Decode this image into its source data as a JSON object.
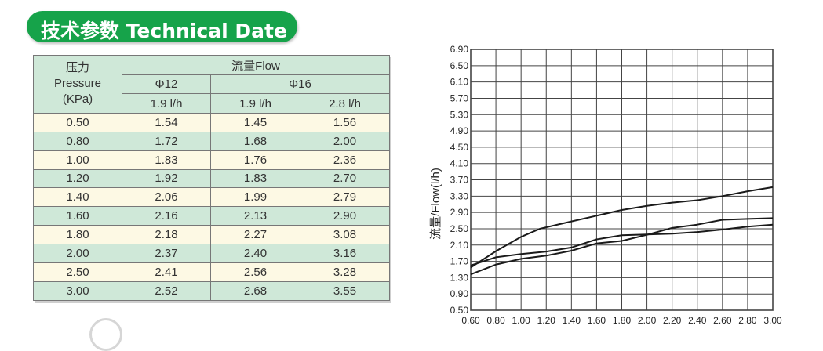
{
  "banner": {
    "title": "技术参数 Technical Date"
  },
  "table": {
    "pressure_cn": "压力",
    "pressure_en": "Pressure",
    "pressure_unit": "(KPa)",
    "flow_label": "流量Flow",
    "phi12": "Φ12",
    "phi16": "Φ16",
    "sub_headers": [
      "1.9 l/h",
      "1.9 l/h",
      "2.8 l/h"
    ],
    "rows": [
      [
        "0.50",
        "1.54",
        "1.45",
        "1.56"
      ],
      [
        "0.80",
        "1.72",
        "1.68",
        "2.00"
      ],
      [
        "1.00",
        "1.83",
        "1.76",
        "2.36"
      ],
      [
        "1.20",
        "1.92",
        "1.83",
        "2.70"
      ],
      [
        "1.40",
        "2.06",
        "1.99",
        "2.79"
      ],
      [
        "1.60",
        "2.16",
        "2.13",
        "2.90"
      ],
      [
        "1.80",
        "2.18",
        "2.27",
        "3.08"
      ],
      [
        "2.00",
        "2.37",
        "2.40",
        "3.16"
      ],
      [
        "2.50",
        "2.41",
        "2.56",
        "3.28"
      ],
      [
        "3.00",
        "2.52",
        "2.68",
        "3.55"
      ]
    ]
  },
  "chart_data": {
    "type": "line",
    "ylabel": "流量/Flow(l/h)",
    "xlabel": "",
    "xlim": [
      0.6,
      3.0
    ],
    "ylim": [
      0.5,
      6.9
    ],
    "grid": true,
    "xticks": [
      "0.60",
      "0.80",
      "1.00",
      "1.20",
      "1.40",
      "1.60",
      "1.80",
      "2.00",
      "2.20",
      "2.40",
      "2.60",
      "2.80",
      "3.00"
    ],
    "yticks": [
      "6.90",
      "6.50",
      "6.10",
      "5.70",
      "5.30",
      "4.90",
      "4.50",
      "4.10",
      "3.70",
      "3.30",
      "2.90",
      "2.50",
      "2.10",
      "1.70",
      "1.30",
      "0.90",
      "0.50"
    ],
    "series": [
      {
        "points": [
          [
            0.6,
            1.55
          ],
          [
            0.8,
            1.95
          ],
          [
            1.0,
            2.3
          ],
          [
            1.15,
            2.5
          ],
          [
            1.4,
            2.68
          ],
          [
            1.6,
            2.82
          ],
          [
            1.8,
            2.96
          ],
          [
            2.0,
            3.06
          ],
          [
            2.2,
            3.14
          ],
          [
            2.4,
            3.2
          ],
          [
            2.6,
            3.3
          ],
          [
            2.8,
            3.42
          ],
          [
            3.0,
            3.52
          ]
        ]
      },
      {
        "points": [
          [
            0.6,
            1.6
          ],
          [
            0.8,
            1.8
          ],
          [
            1.0,
            1.88
          ],
          [
            1.2,
            1.94
          ],
          [
            1.4,
            2.04
          ],
          [
            1.6,
            2.24
          ],
          [
            1.8,
            2.34
          ],
          [
            2.0,
            2.36
          ],
          [
            2.2,
            2.38
          ],
          [
            2.4,
            2.42
          ],
          [
            2.6,
            2.48
          ],
          [
            2.8,
            2.55
          ],
          [
            3.0,
            2.6
          ]
        ]
      },
      {
        "points": [
          [
            0.6,
            1.38
          ],
          [
            0.8,
            1.62
          ],
          [
            1.0,
            1.76
          ],
          [
            1.2,
            1.84
          ],
          [
            1.4,
            1.96
          ],
          [
            1.6,
            2.14
          ],
          [
            1.8,
            2.2
          ],
          [
            2.0,
            2.35
          ],
          [
            2.2,
            2.52
          ],
          [
            2.4,
            2.6
          ],
          [
            2.6,
            2.72
          ],
          [
            2.8,
            2.74
          ],
          [
            3.0,
            2.76
          ]
        ]
      }
    ]
  }
}
